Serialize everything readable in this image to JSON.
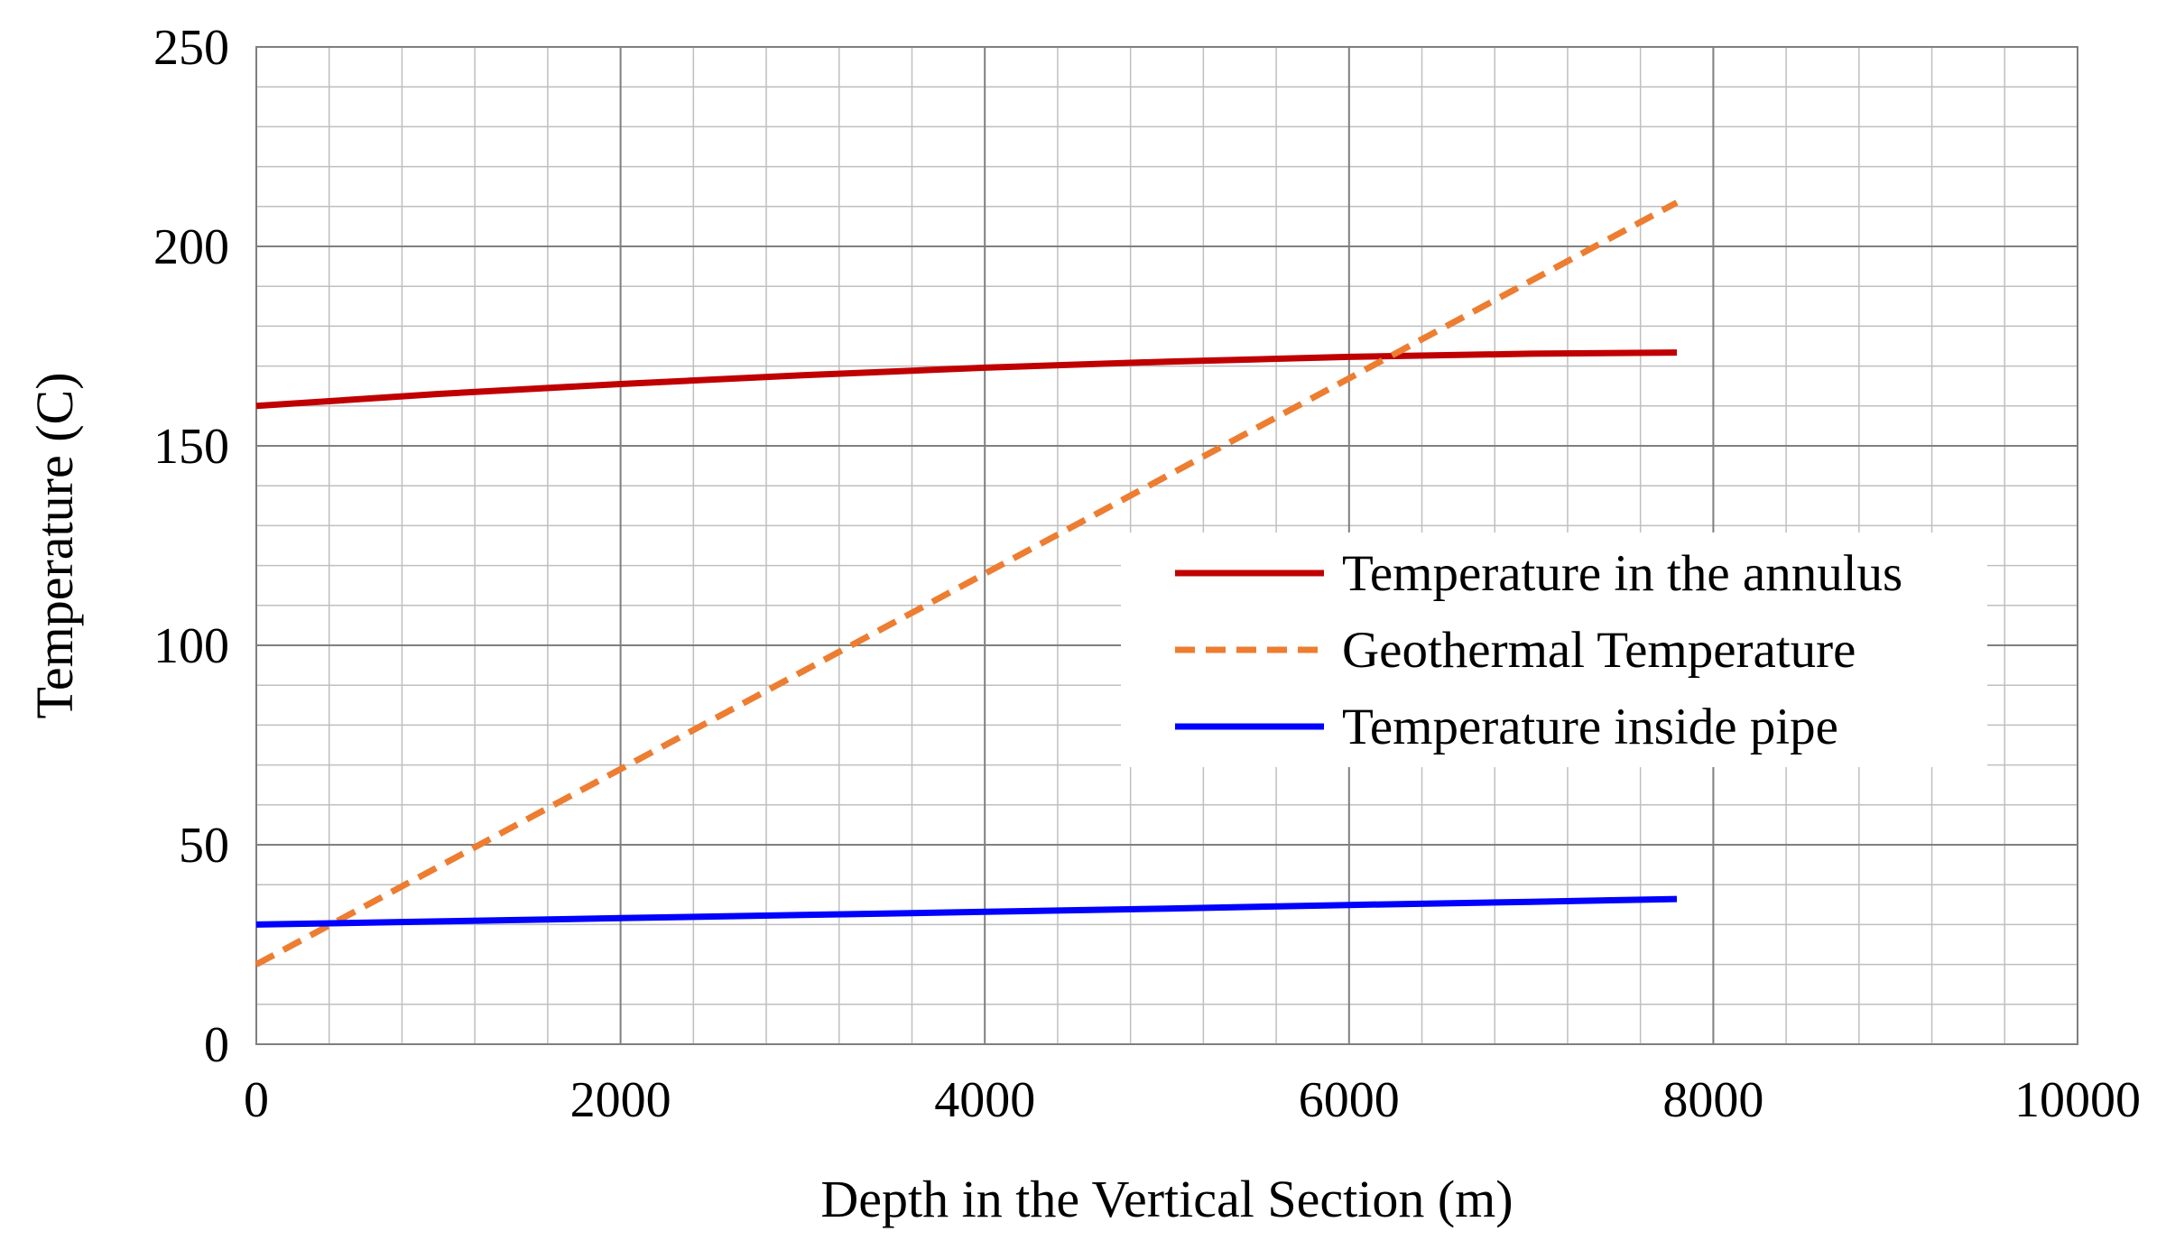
{
  "chart_data": {
    "type": "line",
    "title": "",
    "xlabel": "Depth in the Vertical Section (m)",
    "ylabel": "Temperature (C)",
    "xlim": [
      0,
      10000
    ],
    "ylim": [
      0,
      250
    ],
    "x_ticks": [
      0,
      2000,
      4000,
      6000,
      8000,
      10000
    ],
    "y_ticks": [
      0,
      50,
      100,
      150,
      200,
      250
    ],
    "x_tick_labels": [
      "0",
      "2000",
      "4000",
      "6000",
      "8000",
      "10000"
    ],
    "y_tick_labels": [
      "0",
      "50",
      "100",
      "150",
      "200",
      "250"
    ],
    "grid": true,
    "minor_grid": true,
    "legend_position": "center-right",
    "series": [
      {
        "name": "Temperature in the annulus",
        "color": "#C00000",
        "style": "solid",
        "x": [
          0,
          1000,
          2000,
          3000,
          4000,
          5000,
          6000,
          7000,
          7800
        ],
        "y": [
          160,
          163,
          165.5,
          167.7,
          169.6,
          171.1,
          172.3,
          173.1,
          173.4
        ]
      },
      {
        "name": "Geothermal Temperature",
        "color": "#ED7D31",
        "style": "dashed",
        "x": [
          0,
          7800
        ],
        "y": [
          20,
          211
        ]
      },
      {
        "name": "Temperature inside pipe",
        "color": "#0000FF",
        "style": "solid",
        "x": [
          0,
          1000,
          2000,
          3000,
          4000,
          5000,
          6000,
          7000,
          7800
        ],
        "y": [
          30,
          30.8,
          31.6,
          32.4,
          33.2,
          34,
          34.9,
          35.7,
          36.4
        ]
      }
    ]
  }
}
